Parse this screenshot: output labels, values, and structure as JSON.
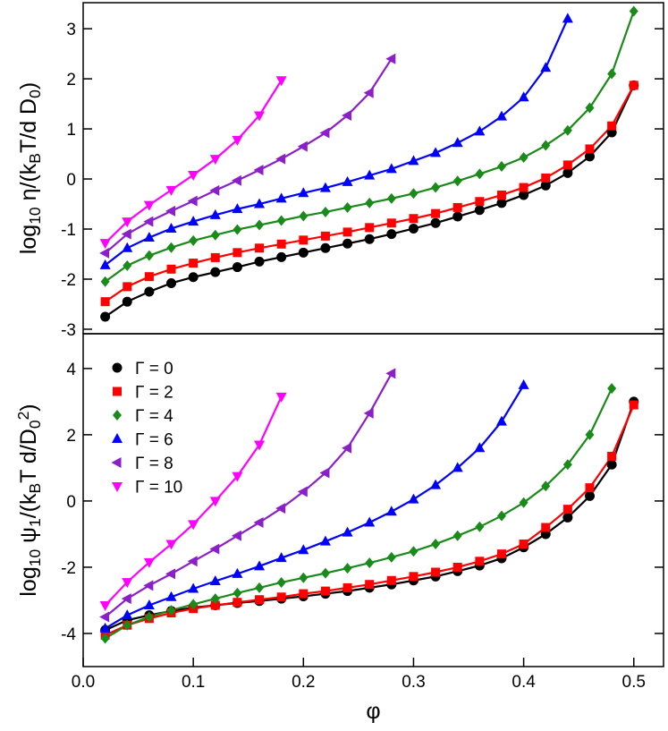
{
  "chart_data": [
    {
      "type": "line",
      "ylabel": "log_{10}  η/(k_{B}T/d D_{0})",
      "x": [
        0.02,
        0.04,
        0.06,
        0.08,
        0.1,
        0.12,
        0.14,
        0.16,
        0.18,
        0.2,
        0.22,
        0.24,
        0.26,
        0.28,
        0.3,
        0.32,
        0.34,
        0.36,
        0.38,
        0.4,
        0.42,
        0.44,
        0.46,
        0.48,
        0.5
      ],
      "xlim": [
        0,
        0.527
      ],
      "ylim": [
        -3.09,
        3.52
      ],
      "yticks": [
        -3,
        -2,
        -1,
        0,
        1,
        2,
        3
      ],
      "series": [
        {
          "color": "#000000",
          "marker": "circle",
          "values": [
            -2.75,
            -2.45,
            -2.25,
            -2.08,
            -1.96,
            -1.86,
            -1.76,
            -1.65,
            -1.56,
            -1.47,
            -1.38,
            -1.29,
            -1.2,
            -1.1,
            -0.99,
            -0.88,
            -0.75,
            -0.62,
            -0.48,
            -0.32,
            -0.13,
            0.12,
            0.45,
            0.93,
            1.87
          ]
        },
        {
          "color": "#ff0000",
          "marker": "square",
          "values": [
            -2.45,
            -2.15,
            -1.95,
            -1.8,
            -1.68,
            -1.57,
            -1.47,
            -1.38,
            -1.3,
            -1.22,
            -1.14,
            -1.06,
            -0.97,
            -0.88,
            -0.79,
            -0.69,
            -0.57,
            -0.45,
            -0.32,
            -0.17,
            0.02,
            0.28,
            0.6,
            1.06,
            1.87
          ]
        },
        {
          "color": "#1a8a1a",
          "marker": "diamond",
          "values": [
            -2.05,
            -1.73,
            -1.53,
            -1.37,
            -1.23,
            -1.12,
            -1.01,
            -0.92,
            -0.83,
            -0.74,
            -0.66,
            -0.57,
            -0.48,
            -0.39,
            -0.29,
            -0.17,
            -0.04,
            0.1,
            0.25,
            0.43,
            0.67,
            0.97,
            1.42,
            2.1,
            3.35
          ]
        },
        {
          "color": "#0000ff",
          "marker": "triangle-up",
          "values": [
            -1.72,
            -1.38,
            -1.17,
            -0.99,
            -0.85,
            -0.72,
            -0.6,
            -0.5,
            -0.39,
            -0.28,
            -0.18,
            -0.06,
            0.07,
            0.2,
            0.36,
            0.52,
            0.72,
            0.95,
            1.25,
            1.63,
            2.22,
            3.2,
            null,
            null,
            null
          ]
        },
        {
          "color": "#8b1fc8",
          "marker": "triangle-left",
          "values": [
            -1.48,
            -1.1,
            -0.85,
            -0.64,
            -0.44,
            -0.23,
            -0.03,
            0.18,
            0.4,
            0.65,
            0.92,
            1.27,
            1.72,
            2.4,
            null,
            null,
            null,
            null,
            null,
            null,
            null,
            null,
            null,
            null,
            null
          ]
        },
        {
          "color": "#ff00ff",
          "marker": "triangle-down",
          "values": [
            -1.28,
            -0.85,
            -0.52,
            -0.22,
            0.08,
            0.4,
            0.78,
            1.27,
            1.97,
            null,
            null,
            null,
            null,
            null,
            null,
            null,
            null,
            null,
            null,
            null,
            null,
            null,
            null,
            null,
            null
          ]
        }
      ]
    },
    {
      "type": "line",
      "ylabel": "log_{10}  ψ_{1}/(k_{B}T d/D_{0}^{2})",
      "xlabel": "φ",
      "x": [
        0.02,
        0.04,
        0.06,
        0.08,
        0.1,
        0.12,
        0.14,
        0.16,
        0.18,
        0.2,
        0.22,
        0.24,
        0.26,
        0.28,
        0.3,
        0.32,
        0.34,
        0.36,
        0.38,
        0.4,
        0.42,
        0.44,
        0.46,
        0.48,
        0.5
      ],
      "xlim": [
        0,
        0.527
      ],
      "ylim": [
        -5,
        5.05
      ],
      "xticks": [
        {
          "value": 0,
          "label": "0.0"
        },
        0.1,
        0.2,
        0.3,
        0.4,
        0.5
      ],
      "yticks": [
        -4,
        -2,
        0,
        2,
        4
      ],
      "legend": "upper left",
      "series": [
        {
          "name": "Γ = 0",
          "color": "#000000",
          "marker": "circle",
          "values": [
            -3.9,
            -3.6,
            -3.45,
            -3.32,
            -3.22,
            -3.15,
            -3.08,
            -3.02,
            -2.95,
            -2.88,
            -2.8,
            -2.72,
            -2.62,
            -2.52,
            -2.4,
            -2.28,
            -2.12,
            -1.95,
            -1.73,
            -1.4,
            -1.0,
            -0.5,
            0.15,
            1.1,
            3.0
          ]
        },
        {
          "name": "Γ = 2",
          "color": "#ff0000",
          "marker": "square",
          "values": [
            -4.05,
            -3.75,
            -3.55,
            -3.38,
            -3.25,
            -3.15,
            -3.06,
            -2.98,
            -2.9,
            -2.8,
            -2.72,
            -2.62,
            -2.52,
            -2.4,
            -2.28,
            -2.15,
            -2.0,
            -1.82,
            -1.6,
            -1.3,
            -0.8,
            -0.25,
            0.4,
            1.35,
            2.9
          ]
        },
        {
          "name": "Γ = 4",
          "color": "#1a8a1a",
          "marker": "diamond",
          "values": [
            -4.15,
            -3.75,
            -3.5,
            -3.3,
            -3.12,
            -2.95,
            -2.78,
            -2.62,
            -2.46,
            -2.32,
            -2.18,
            -2.03,
            -1.87,
            -1.7,
            -1.52,
            -1.3,
            -1.05,
            -0.78,
            -0.45,
            -0.05,
            0.45,
            1.1,
            2.0,
            3.4,
            null
          ]
        },
        {
          "name": "Γ = 6",
          "color": "#0000ff",
          "marker": "triangle-up",
          "values": [
            -3.85,
            -3.45,
            -3.15,
            -2.9,
            -2.65,
            -2.42,
            -2.2,
            -1.97,
            -1.72,
            -1.48,
            -1.22,
            -0.95,
            -0.65,
            -0.32,
            0.05,
            0.48,
            1.0,
            1.6,
            2.4,
            3.5,
            null,
            null,
            null,
            null,
            null
          ]
        },
        {
          "name": "Γ = 8",
          "color": "#8b1fc8",
          "marker": "triangle-left",
          "values": [
            -3.5,
            -2.95,
            -2.55,
            -2.2,
            -1.82,
            -1.45,
            -1.05,
            -0.65,
            -0.22,
            0.28,
            0.85,
            1.6,
            2.65,
            3.85,
            null,
            null,
            null,
            null,
            null,
            null,
            null,
            null,
            null,
            null,
            null
          ]
        },
        {
          "name": "Γ = 10",
          "color": "#ff00ff",
          "marker": "triangle-down",
          "values": [
            -3.15,
            -2.45,
            -1.85,
            -1.3,
            -0.7,
            0.0,
            0.75,
            1.7,
            3.15,
            null,
            null,
            null,
            null,
            null,
            null,
            null,
            null,
            null,
            null,
            null,
            null,
            null,
            null,
            null,
            null
          ]
        }
      ]
    }
  ]
}
